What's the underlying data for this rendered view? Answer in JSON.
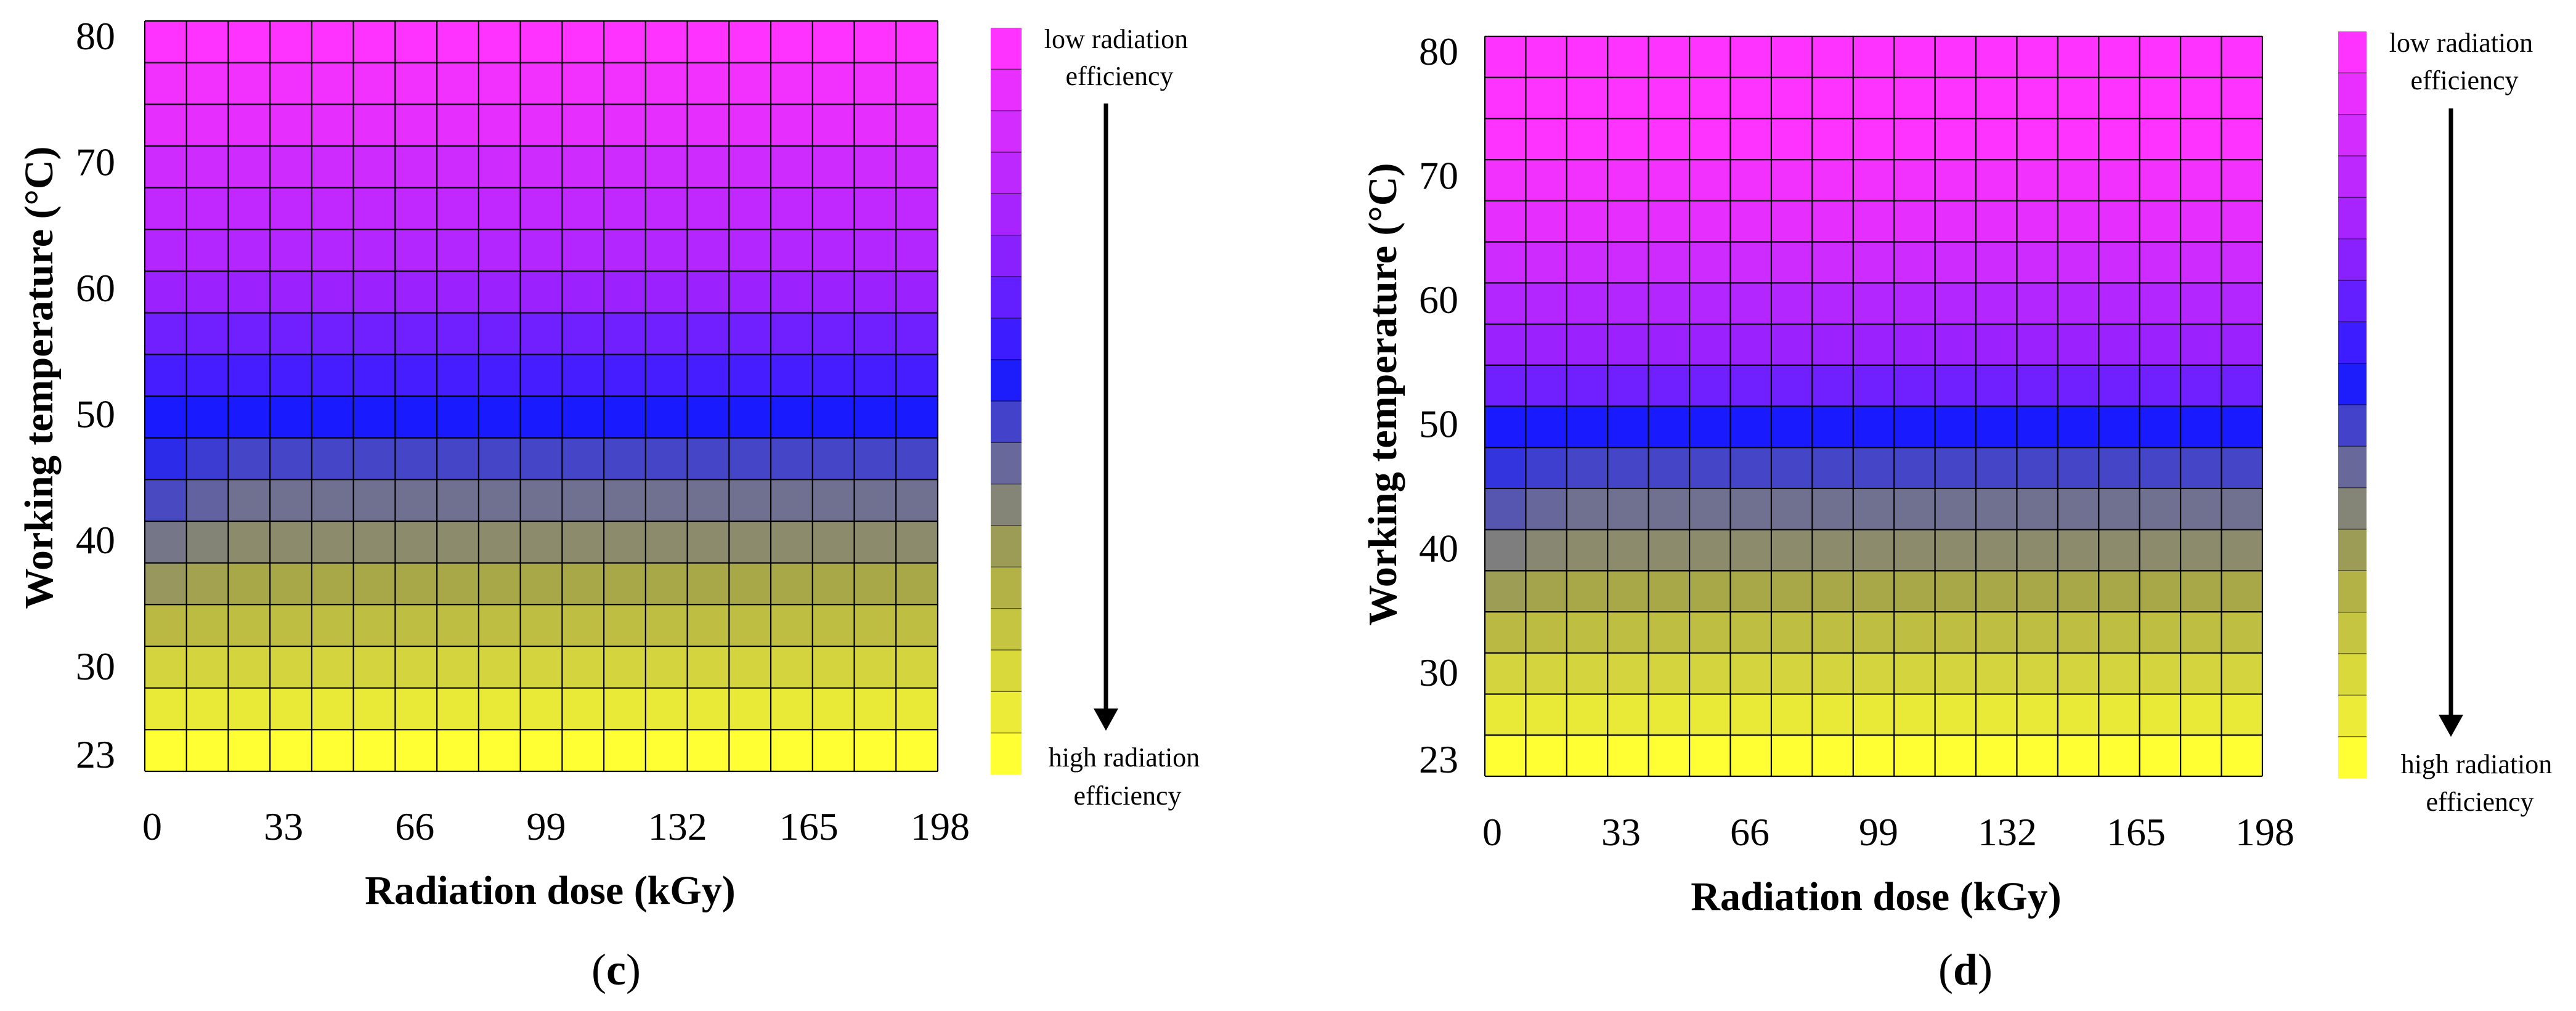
{
  "chart_data": [
    {
      "type": "heatmap",
      "panel_label": "(c)",
      "panel_label_letter": "c",
      "xlabel": "Radiation dose (kGy)",
      "ylabel": "Working temperature (°C)",
      "x_ticks": [
        "0",
        "33",
        "66",
        "99",
        "132",
        "165",
        "198"
      ],
      "x_tick_values": [
        0,
        33,
        66,
        99,
        132,
        165,
        198
      ],
      "y_ticks": [
        "80",
        "70",
        "60",
        "50",
        "40",
        "30",
        "23"
      ],
      "y_tick_values": [
        80,
        70,
        60,
        50,
        40,
        30,
        23
      ],
      "xlim": [
        0,
        198
      ],
      "ylim": [
        23,
        80
      ],
      "grid_cols": 19,
      "grid_rows": 18,
      "color_rows_top_to_bottom": [
        0,
        0.5,
        1,
        2,
        2.5,
        3,
        4,
        5,
        6,
        7,
        8,
        9,
        10,
        11,
        12,
        13,
        14,
        15
      ],
      "low_dose_col_offset": [
        0,
        0,
        0,
        0,
        0,
        0,
        0,
        0,
        0,
        0,
        0.6,
        0.9,
        0.8,
        0.6,
        0.2,
        0,
        0,
        0
      ],
      "legend": {
        "top_label_line1": "low radiation",
        "top_label_line2": "efficiency",
        "bottom_label_line1": "high radiation",
        "bottom_label_line2": "efficiency",
        "levels": 18
      }
    },
    {
      "type": "heatmap",
      "panel_label": "(d)",
      "panel_label_letter": "d",
      "xlabel": "Radiation dose (kGy)",
      "ylabel": "Working temperature (°C)",
      "x_ticks": [
        "0",
        "33",
        "66",
        "99",
        "132",
        "165",
        "198"
      ],
      "x_tick_values": [
        0,
        33,
        66,
        99,
        132,
        165,
        198
      ],
      "y_ticks": [
        "80",
        "70",
        "60",
        "50",
        "40",
        "30",
        "23"
      ],
      "y_tick_values": [
        80,
        70,
        60,
        50,
        40,
        30,
        23
      ],
      "xlim": [
        0,
        198
      ],
      "ylim": [
        23,
        80
      ],
      "grid_cols": 19,
      "grid_rows": 18,
      "color_rows_top_to_bottom": [
        0,
        0,
        0,
        0.5,
        1,
        2,
        3,
        4,
        5,
        7,
        8,
        9,
        10,
        11,
        12,
        13,
        14,
        15
      ],
      "low_dose_col_offset": [
        0,
        0,
        0,
        0,
        0,
        0,
        0,
        0,
        0,
        0,
        0.4,
        0.6,
        0.5,
        0.4,
        0.2,
        0,
        0,
        0
      ],
      "legend": {
        "top_label_line1": "low radiation",
        "top_label_line2": "efficiency",
        "bottom_label_line1": "high radiation",
        "bottom_label_line2": "efficiency",
        "levels": 18
      }
    }
  ],
  "colors": {
    "magenta": "#ff33ff",
    "violet": "#9b22ff",
    "blue": "#1a1aff",
    "slate": "#707090",
    "olive": "#a8a848",
    "yellow": "#ffff33",
    "grid_line": "#000000"
  }
}
